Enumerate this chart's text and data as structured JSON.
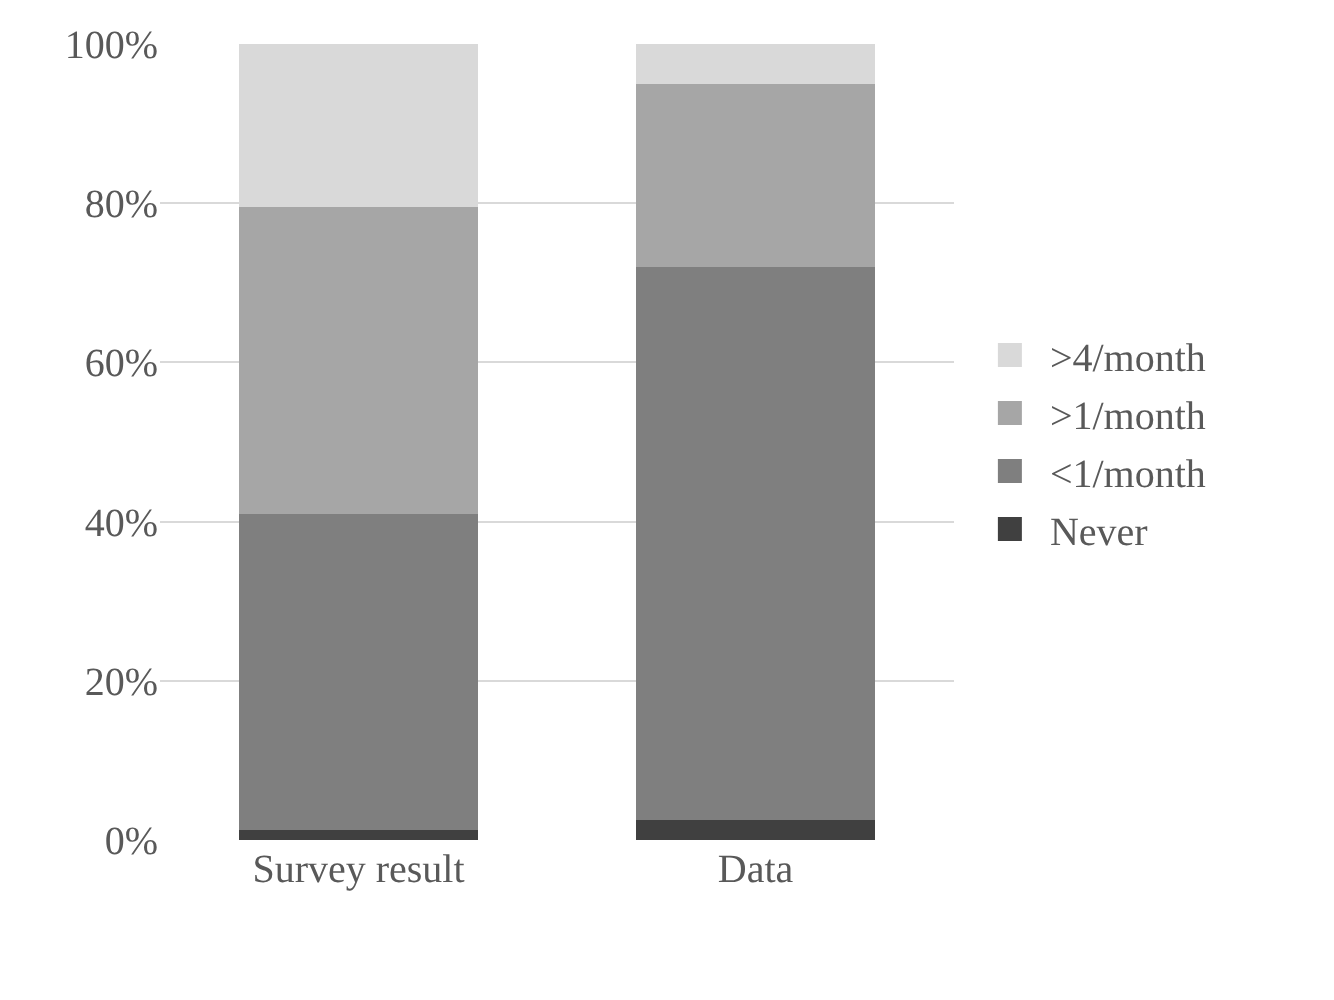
{
  "chart_data": {
    "type": "bar",
    "stacked": true,
    "categories": [
      "Survey result",
      "Data"
    ],
    "series": [
      {
        "name": "Never",
        "color": "#404040",
        "values": [
          1.2,
          2.5
        ]
      },
      {
        "name": "<1/month",
        "color": "#7f7f7f",
        "values": [
          39.8,
          69.5
        ]
      },
      {
        "name": ">1/month",
        "color": "#a6a6a6",
        "values": [
          38.5,
          23
        ]
      },
      {
        "name": ">4/month",
        "color": "#d9d9d9",
        "values": [
          20.5,
          5
        ]
      }
    ],
    "ylim": [
      0,
      100
    ],
    "yticks": [
      {
        "value": 0,
        "label": "0%"
      },
      {
        "value": 20,
        "label": "20%"
      },
      {
        "value": 40,
        "label": "40%"
      },
      {
        "value": 60,
        "label": "60%"
      },
      {
        "value": 80,
        "label": "80%"
      },
      {
        "value": 100,
        "label": "100%"
      }
    ],
    "grid": "y",
    "legend": "right"
  }
}
